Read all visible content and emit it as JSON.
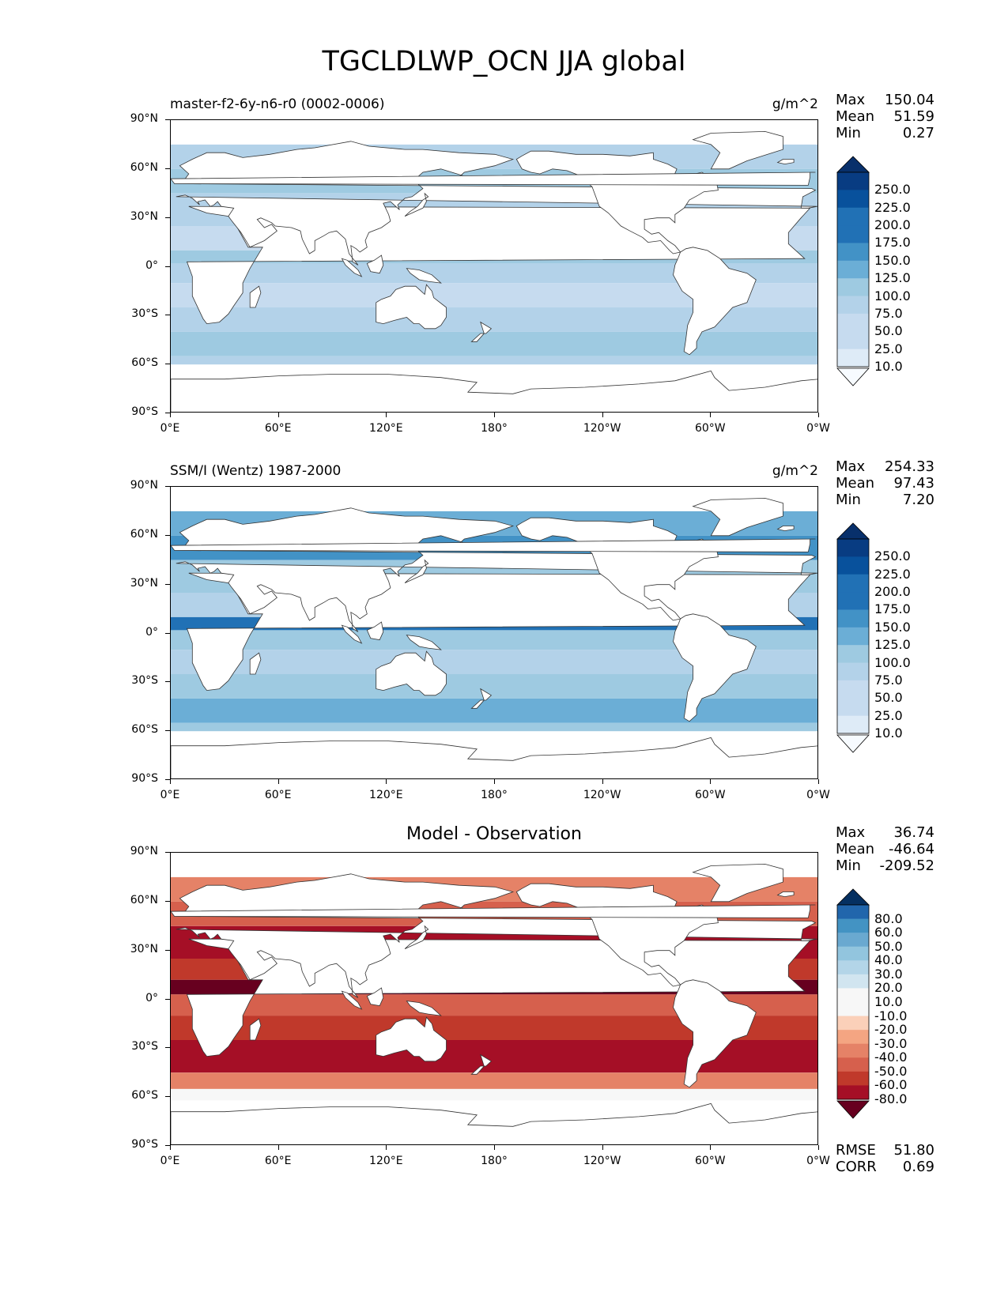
{
  "title": "TGCLDLWP_OCN JJA global",
  "y_ticks": [
    "90°N",
    "60°N",
    "30°N",
    "0°",
    "30°S",
    "60°S",
    "90°S"
  ],
  "x_ticks": [
    "0°E",
    "60°E",
    "120°E",
    "180°",
    "120°W",
    "60°W",
    "0°W"
  ],
  "panels": [
    {
      "left_title": "master-f2-6y-n6-r0 (0002-0006)",
      "center_title": "",
      "units": "g/m^2",
      "stats": [
        {
          "k": "Max",
          "v": "150.04"
        },
        {
          "k": "Mean",
          "v": "51.59"
        },
        {
          "k": "Min",
          "v": "0.27"
        }
      ],
      "colorbar_labels": [
        "250.0",
        "225.0",
        "200.0",
        "175.0",
        "150.0",
        "125.0",
        "100.0",
        "75.0",
        "50.0",
        "25.0",
        "10.0"
      ]
    },
    {
      "left_title": "SSM/I (Wentz) 1987-2000",
      "center_title": "",
      "units": "g/m^2",
      "stats": [
        {
          "k": "Max",
          "v": "254.33"
        },
        {
          "k": "Mean",
          "v": "97.43"
        },
        {
          "k": "Min",
          "v": "7.20"
        }
      ],
      "colorbar_labels": [
        "250.0",
        "225.0",
        "200.0",
        "175.0",
        "150.0",
        "125.0",
        "100.0",
        "75.0",
        "50.0",
        "25.0",
        "10.0"
      ]
    },
    {
      "left_title": "",
      "center_title": "Model - Observation",
      "units": "",
      "stats": [
        {
          "k": "Max",
          "v": "36.74"
        },
        {
          "k": "Mean",
          "v": "-46.64"
        },
        {
          "k": "Min",
          "v": "-209.52"
        }
      ],
      "colorbar_labels": [
        "80.0",
        "60.0",
        "50.0",
        "40.0",
        "30.0",
        "20.0",
        "10.0",
        "-10.0",
        "-20.0",
        "-30.0",
        "-40.0",
        "-50.0",
        "-60.0",
        "-80.0"
      ],
      "bottom_stats": [
        {
          "k": "RMSE",
          "v": "51.80"
        },
        {
          "k": "CORR",
          "v": "0.69"
        }
      ]
    }
  ],
  "colors": {
    "blues": [
      "#f7fbff",
      "#deebf7",
      "#c6dbef",
      "#b3d2e9",
      "#9ecae1",
      "#6baed6",
      "#4292c6",
      "#2171b5",
      "#08519c",
      "#083c82",
      "#08306b"
    ],
    "diverging": [
      "#67001f",
      "#a50f26",
      "#c0392b",
      "#d6604d",
      "#e58267",
      "#f4a582",
      "#fbd0b9",
      "#f7f7f7",
      "#d1e5f0",
      "#b3d5e8",
      "#92c5de",
      "#6aa9d0",
      "#4393c3",
      "#2166ac",
      "#053061"
    ]
  },
  "chart_data": [
    {
      "type": "heatmap",
      "title": "master-f2-6y-n6-r0 (0002-0006)",
      "variable": "TGCLDLWP_OCN",
      "season": "JJA",
      "units": "g/m^2",
      "x_range": [
        "0°E",
        "0°W"
      ],
      "y_range": [
        "90°S",
        "90°N"
      ],
      "colorbar_levels": [
        10,
        25,
        50,
        75,
        100,
        125,
        150,
        175,
        200,
        225,
        250
      ],
      "stats": {
        "max": 150.04,
        "mean": 51.59,
        "min": 0.27
      }
    },
    {
      "type": "heatmap",
      "title": "SSM/I (Wentz) 1987-2000",
      "variable": "TGCLDLWP_OCN",
      "season": "JJA",
      "units": "g/m^2",
      "x_range": [
        "0°E",
        "0°W"
      ],
      "y_range": [
        "90°S",
        "90°N"
      ],
      "colorbar_levels": [
        10,
        25,
        50,
        75,
        100,
        125,
        150,
        175,
        200,
        225,
        250
      ],
      "stats": {
        "max": 254.33,
        "mean": 97.43,
        "min": 7.2
      }
    },
    {
      "type": "heatmap",
      "title": "Model - Observation",
      "x_range": [
        "0°E",
        "0°W"
      ],
      "y_range": [
        "90°S",
        "90°N"
      ],
      "colorbar_levels": [
        -80,
        -60,
        -50,
        -40,
        -30,
        -20,
        -10,
        10,
        20,
        30,
        40,
        50,
        60,
        80
      ],
      "stats": {
        "max": 36.74,
        "mean": -46.64,
        "min": -209.52,
        "rmse": 51.8,
        "corr": 0.69
      }
    }
  ]
}
